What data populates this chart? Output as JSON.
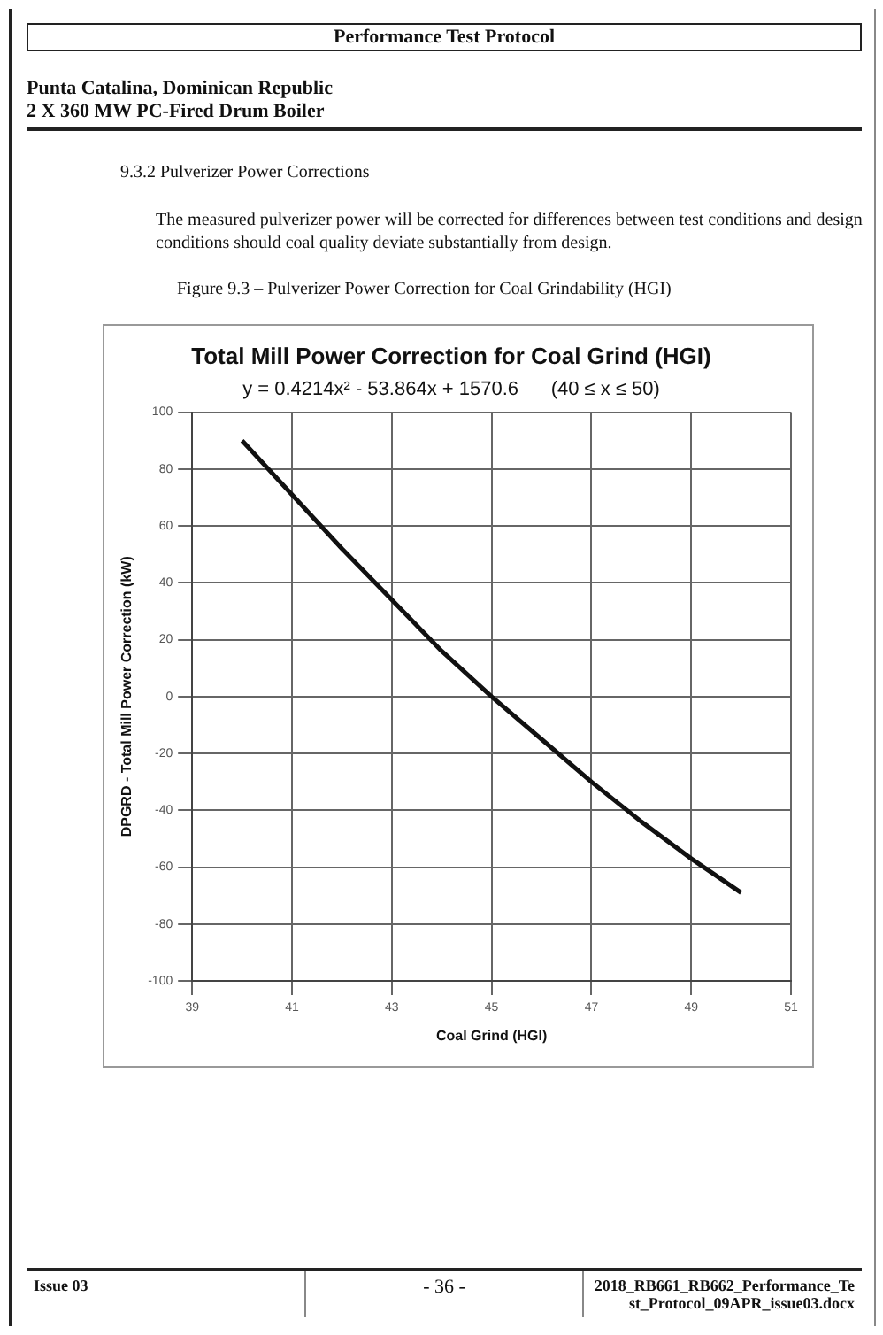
{
  "chart_data": {
    "type": "line",
    "title": "Total Mill Power Correction for Coal Grind (HGI)",
    "subtitle": "y = 0.4214x² - 53.864x + 1570.6      (40 ≤ x ≤ 50)",
    "xlabel": "Coal Grind (HGI)",
    "ylabel": "DPGRD - Total Mill Power Correction (kW)",
    "annotations": [
      "Performance Test Protocol",
      "Punta Catalina, Dominican Republic",
      "2 X 360 MW PC-Fired Drum Boiler",
      "9.3.2   Pulverizer Power Corrections",
      "The measured pulverizer power will be corrected for differences between test conditions and design conditions should coal quality deviate substantially from design.",
      "Figure 9.3 – Pulverizer Power Correction for Coal Grindability (HGI)",
      "Issue 03",
      "- 36 -",
      "2018_RB661_RB662_Performance_Test_Protocol_09APR_issue03.docx"
    ],
    "x": [
      40,
      41,
      42,
      43,
      44,
      45,
      46,
      47,
      48,
      49,
      50
    ],
    "series": [
      {
        "color": "#111111",
        "values": [
          90,
          71,
          52,
          34,
          16,
          0,
          -15,
          -30,
          -44,
          -57,
          -69
        ]
      }
    ],
    "xlim": [
      39,
      51
    ],
    "xticks": [
      39,
      41,
      43,
      45,
      47,
      49,
      51
    ],
    "ylim": [
      -100,
      100
    ],
    "yticks": [
      -100,
      -80,
      -60,
      -40,
      -20,
      0,
      20,
      40,
      60,
      80,
      100
    ],
    "grid": true,
    "legend": false,
    "marker": "none",
    "line_style": "solid"
  }
}
